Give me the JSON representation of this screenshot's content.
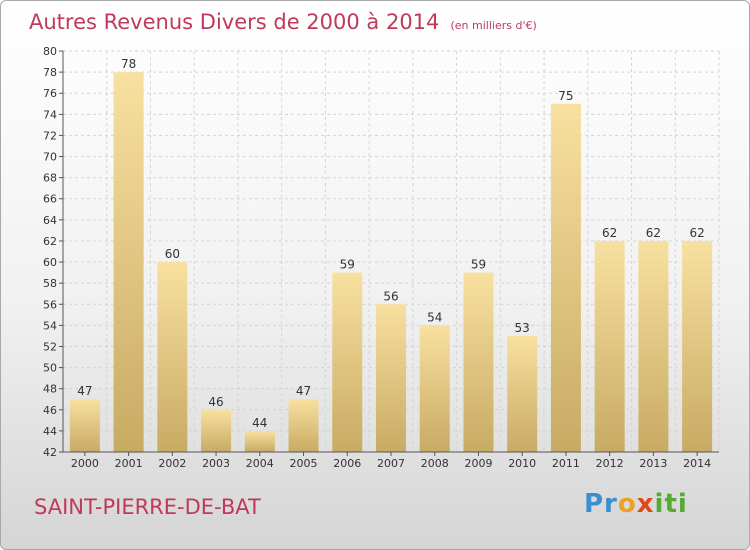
{
  "title": "Autres Revenus Divers de 2000 à 2014",
  "subtitle": "(en milliers d'€)",
  "location": "SAINT-PIERRE-DE-BAT",
  "logo": {
    "parts": [
      "Pr",
      "o",
      "x",
      "iti"
    ],
    "colors": [
      "#3a8fd0",
      "#f0a020",
      "#e04a1a",
      "#55aa33"
    ]
  },
  "colors": {
    "bar_top": "#f8e0a0",
    "bar_bottom": "#c8ab63",
    "title": "#c0395a"
  },
  "chart_data": {
    "type": "bar",
    "title": "Autres Revenus Divers de 2000 à 2014",
    "ylabel": "en milliers d'€",
    "xlabel": "",
    "categories": [
      "2000",
      "2001",
      "2002",
      "2003",
      "2004",
      "2005",
      "2006",
      "2007",
      "2008",
      "2009",
      "2010",
      "2011",
      "2012",
      "2013",
      "2014"
    ],
    "values": [
      47,
      78,
      60,
      46,
      44,
      47,
      59,
      56,
      54,
      59,
      53,
      75,
      62,
      62,
      62
    ],
    "ylim": [
      42,
      80
    ],
    "yticks": [
      42,
      44,
      46,
      48,
      50,
      52,
      54,
      56,
      58,
      60,
      62,
      64,
      66,
      68,
      70,
      72,
      74,
      76,
      78,
      80
    ],
    "grid": true
  }
}
